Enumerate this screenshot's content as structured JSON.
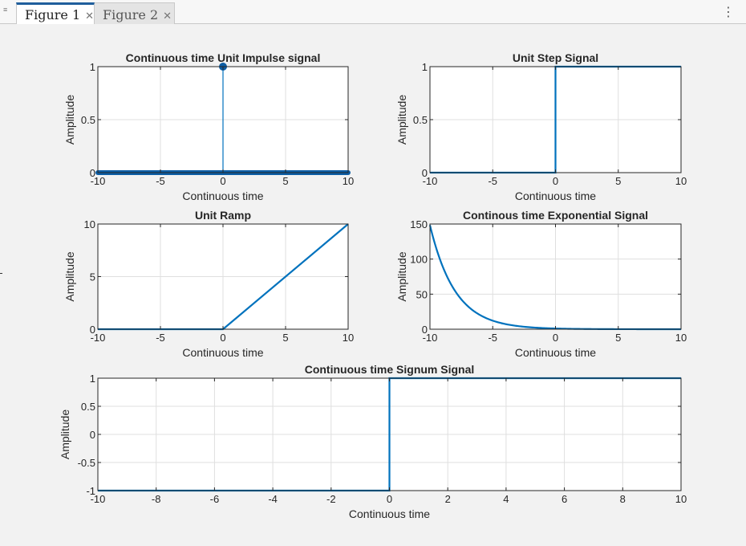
{
  "tabs": [
    {
      "label": "Figure 1",
      "active": true
    },
    {
      "label": "Figure 2",
      "active": false
    }
  ],
  "icons": {
    "close": "close-icon",
    "menu": "kebab-menu-icon",
    "grip": "grip-icon"
  },
  "colors": {
    "line": "#0072bd",
    "marker": "#0c5da5",
    "axes_bg": "#ffffff",
    "figure_bg": "#f2f2f2"
  },
  "chart_data": [
    {
      "type": "line",
      "style": "stem",
      "title": "Continuous time Unit Impulse signal",
      "xlabel": "Continuous time",
      "ylabel": "Amplitude",
      "xlim": [
        -10,
        10
      ],
      "ylim": [
        0,
        1
      ],
      "xticks": [
        -10,
        -5,
        0,
        5,
        10
      ],
      "xticklabels": [
        "-10",
        "-5",
        "0",
        "5",
        "10"
      ],
      "yticks": [
        0,
        0.5,
        1
      ],
      "yticklabels": [
        "0",
        "0.5",
        "1"
      ],
      "grid": true,
      "x_range": [
        -10,
        10
      ],
      "impulse_at": 0,
      "impulse_value": 1
    },
    {
      "type": "line",
      "title": "Unit Step Signal",
      "xlabel": "Continuous time",
      "ylabel": "Amplitude",
      "xlim": [
        -10,
        10
      ],
      "ylim": [
        0,
        1
      ],
      "xticks": [
        -10,
        -5,
        0,
        5,
        10
      ],
      "xticklabels": [
        "-10",
        "-5",
        "0",
        "5",
        "10"
      ],
      "yticks": [
        0,
        0.5,
        1
      ],
      "yticklabels": [
        "0",
        "0.5",
        "1"
      ],
      "grid": true,
      "x": [
        -10,
        0,
        0,
        10
      ],
      "y": [
        0,
        0,
        1,
        1
      ]
    },
    {
      "type": "line",
      "title": "Unit Ramp",
      "xlabel": "Continuous time",
      "ylabel": "Amplitude",
      "xlim": [
        -10,
        10
      ],
      "ylim": [
        0,
        10
      ],
      "xticks": [
        -10,
        -5,
        0,
        5,
        10
      ],
      "xticklabels": [
        "-10",
        "-5",
        "0",
        "5",
        "10"
      ],
      "yticks": [
        0,
        5,
        10
      ],
      "yticklabels": [
        "0",
        "5",
        "10"
      ],
      "grid": true,
      "x": [
        -10,
        0,
        10
      ],
      "y": [
        0,
        0,
        10
      ]
    },
    {
      "type": "line",
      "title": "Continous time Exponential Signal",
      "xlabel": "Continuous time",
      "ylabel": "Amplitude",
      "xlim": [
        -10,
        10
      ],
      "ylim": [
        0,
        150
      ],
      "xticks": [
        -10,
        -5,
        0,
        5,
        10
      ],
      "xticklabels": [
        "-10",
        "-5",
        "0",
        "5",
        "10"
      ],
      "yticks": [
        0,
        50,
        100,
        150
      ],
      "yticklabels": [
        "0",
        "50",
        "100",
        "150"
      ],
      "grid": true,
      "x": [
        -10,
        -9,
        -8,
        -7,
        -6,
        -5,
        -4,
        -3,
        -2,
        -1,
        0,
        2,
        4,
        6,
        8,
        10
      ],
      "y": [
        148.4,
        90.0,
        54.6,
        33.1,
        20.1,
        12.2,
        7.4,
        4.5,
        2.7,
        1.6,
        1.0,
        0.37,
        0.14,
        0.05,
        0.02,
        0.01
      ]
    },
    {
      "type": "line",
      "title": "Continuous time Signum Signal",
      "xlabel": "Continuous time",
      "ylabel": "Amplitude",
      "xlim": [
        -10,
        10
      ],
      "ylim": [
        -1,
        1
      ],
      "xticks": [
        -10,
        -8,
        -6,
        -4,
        -2,
        0,
        2,
        4,
        6,
        8,
        10
      ],
      "xticklabels": [
        "-10",
        "-8",
        "-6",
        "-4",
        "-2",
        "0",
        "2",
        "4",
        "6",
        "8",
        "10"
      ],
      "yticks": [
        -1,
        -0.5,
        0,
        0.5,
        1
      ],
      "yticklabels": [
        "-1",
        "-0.5",
        "0",
        "0.5",
        "1"
      ],
      "grid": true,
      "x": [
        -10,
        0,
        0,
        10
      ],
      "y": [
        -1,
        -1,
        1,
        1
      ]
    }
  ]
}
